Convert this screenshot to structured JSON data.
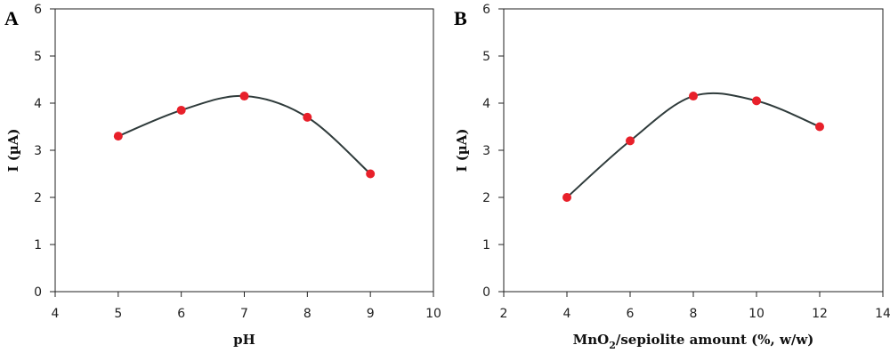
{
  "chart_data": [
    {
      "type": "scatter",
      "panel_label": "A",
      "xlabel": "pH",
      "ylabel": "I (µA)",
      "xlim": [
        4,
        10
      ],
      "ylim": [
        0,
        6
      ],
      "xticks": [
        "4",
        "5",
        "6",
        "7",
        "8",
        "9",
        "10"
      ],
      "yticks": [
        "0",
        "1",
        "2",
        "3",
        "4",
        "5",
        "6"
      ],
      "grid": false,
      "marker_color": "#e8202a",
      "line_color": "#2f3b3b",
      "points": [
        {
          "x": 5,
          "y": 3.3
        },
        {
          "x": 6,
          "y": 3.85
        },
        {
          "x": 7,
          "y": 4.15
        },
        {
          "x": 8,
          "y": 3.7
        },
        {
          "x": 9,
          "y": 2.5
        }
      ],
      "smooth_line": true
    },
    {
      "type": "scatter",
      "panel_label": "B",
      "xlabel_main": "MnO",
      "xlabel_sub": "2",
      "xlabel_rest": "/sepiolite amount (%, w/w)",
      "ylabel": "I (µA)",
      "xlim": [
        2,
        14
      ],
      "ylim": [
        0,
        6
      ],
      "xticks": [
        "2",
        "4",
        "6",
        "8",
        "10",
        "12",
        "14"
      ],
      "yticks": [
        "0",
        "1",
        "2",
        "3",
        "4",
        "5",
        "6"
      ],
      "grid": false,
      "marker_color": "#e8202a",
      "line_color": "#2f3b3b",
      "points": [
        {
          "x": 4,
          "y": 2.0
        },
        {
          "x": 6,
          "y": 3.2
        },
        {
          "x": 8,
          "y": 4.15
        },
        {
          "x": 10,
          "y": 4.05
        },
        {
          "x": 12,
          "y": 3.5
        }
      ],
      "smooth_line": true
    }
  ]
}
